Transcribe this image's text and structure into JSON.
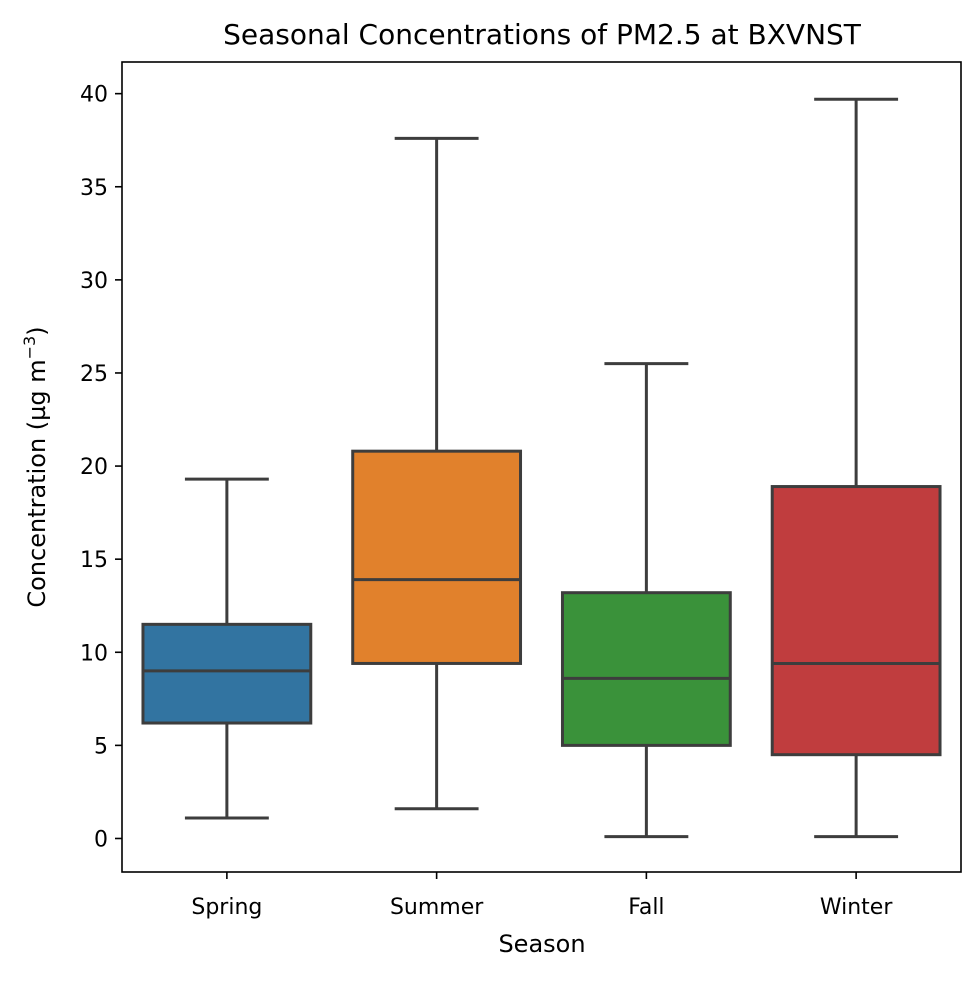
{
  "chart_data": {
    "type": "box",
    "title": "Seasonal Concentrations of PM2.5 at BXVNST",
    "xlabel": "Season",
    "ylabel_main": "Concentration (µg m",
    "ylabel_sup": "−3",
    "ylabel_close": ")",
    "ylim": [
      -1.8,
      41.7
    ],
    "yticks": [
      0,
      5,
      10,
      15,
      20,
      25,
      30,
      35,
      40
    ],
    "grid": false,
    "categories": [
      "Spring",
      "Summer",
      "Fall",
      "Winter"
    ],
    "boxes": [
      {
        "category": "Spring",
        "whisker_low": 1.1,
        "q1": 6.2,
        "median": 9.0,
        "q3": 11.5,
        "whisker_high": 19.3,
        "color": "#3274a1"
      },
      {
        "category": "Summer",
        "whisker_low": 1.6,
        "q1": 9.4,
        "median": 13.9,
        "q3": 20.8,
        "whisker_high": 37.6,
        "color": "#e1812c"
      },
      {
        "category": "Fall",
        "whisker_low": 0.1,
        "q1": 5.0,
        "median": 8.6,
        "q3": 13.2,
        "whisker_high": 25.5,
        "color": "#3a923a"
      },
      {
        "category": "Winter",
        "whisker_low": 0.1,
        "q1": 4.5,
        "median": 9.4,
        "q3": 18.9,
        "whisker_high": 39.7,
        "color": "#c03d3e"
      }
    ],
    "line_color": "#3d3d3d"
  }
}
